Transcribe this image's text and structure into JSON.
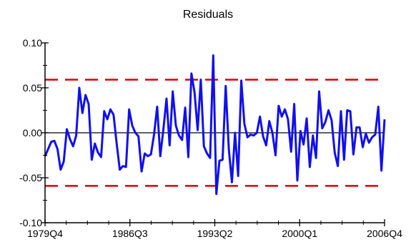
{
  "chart_data": {
    "type": "line",
    "title": "Residuals",
    "xlabel": "",
    "ylabel": "",
    "x_tick_labels": [
      "1979Q4",
      "1986Q3",
      "1993Q2",
      "2000Q1",
      "2006Q4"
    ],
    "y_tick_labels": [
      "0.10",
      "0.05",
      "0.00",
      "-0.05",
      "-0.10"
    ],
    "y_ticks": [
      0.1,
      0.05,
      0.0,
      -0.05,
      -0.1
    ],
    "ylim": [
      -0.1,
      0.1
    ],
    "x_range": [
      "1979Q4",
      "2006Q4"
    ],
    "reference_lines": [
      {
        "value": 0.059,
        "style": "dashed",
        "color": "#e00000"
      },
      {
        "value": -0.059,
        "style": "dashed",
        "color": "#e00000"
      },
      {
        "value": 0.0,
        "style": "solid",
        "color": "#000000"
      }
    ],
    "series": [
      {
        "color": "#1010f0",
        "values": [
          -0.026,
          -0.018,
          -0.01,
          -0.009,
          -0.018,
          -0.041,
          -0.032,
          0.004,
          -0.007,
          -0.015,
          -0.003,
          0.05,
          0.022,
          0.042,
          0.032,
          -0.03,
          -0.012,
          -0.022,
          -0.027,
          0.024,
          0.015,
          0.026,
          0.02,
          -0.012,
          -0.041,
          -0.037,
          -0.038,
          0.026,
          0.008,
          0.0,
          -0.004,
          -0.043,
          -0.023,
          -0.026,
          -0.024,
          -0.002,
          0.029,
          -0.026,
          0.004,
          0.038,
          -0.014,
          0.046,
          0.008,
          -0.003,
          -0.008,
          0.028,
          -0.027,
          0.066,
          0.045,
          0.003,
          0.059,
          -0.015,
          -0.023,
          -0.028,
          0.086,
          -0.068,
          -0.031,
          -0.03,
          0.052,
          -0.018,
          -0.055,
          0.0,
          -0.048,
          0.058,
          0.01,
          -0.005,
          -0.002,
          -0.003,
          0.0,
          0.018,
          -0.004,
          -0.014,
          0.013,
          0.0,
          -0.025,
          0.03,
          0.018,
          0.026,
          0.015,
          -0.021,
          0.032,
          -0.053,
          0.002,
          -0.013,
          0.016,
          -0.038,
          -0.003,
          -0.028,
          0.046,
          0.005,
          0.012,
          0.025,
          0.014,
          -0.022,
          -0.037,
          0.024,
          -0.03,
          0.025,
          0.024,
          -0.024,
          0.006,
          0.006,
          -0.016,
          -0.001,
          -0.011,
          -0.005,
          -0.002,
          0.029,
          -0.042,
          0.015
        ]
      }
    ],
    "grid": false,
    "legend": "none"
  }
}
